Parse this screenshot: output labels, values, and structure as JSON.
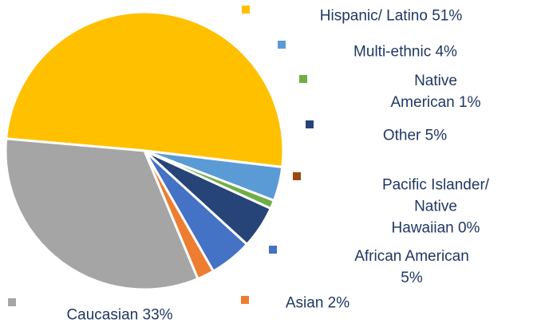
{
  "chart_data": {
    "type": "pie",
    "labels": [
      "Hispanic/ Latino 51%",
      "Multi-ethnic 4%",
      "Native American  1%",
      "Other 5%",
      "Pacific Islander/ Native\nHawaiian  0%",
      "African American 5%",
      "Asian   2%",
      "Caucasian 33%"
    ],
    "values": [
      51,
      4,
      1,
      5,
      0,
      5,
      2,
      33
    ],
    "colors": [
      "#ffc000",
      "#5b9bd5",
      "#70ad47",
      "#264478",
      "#9e480e",
      "#4472c4",
      "#ed7d31",
      "#a5a5a5"
    ]
  }
}
